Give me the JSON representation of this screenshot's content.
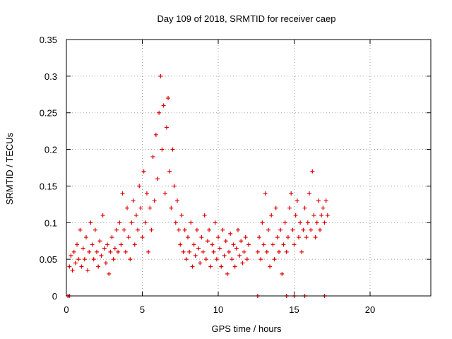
{
  "chart_data": {
    "type": "scatter",
    "title": "Day 109 of 2018, SRMTID for receiver caep",
    "xlabel": "GPS time / hours",
    "ylabel": "SRMTID / TECUs",
    "xlim": [
      0,
      24
    ],
    "ylim": [
      0,
      0.35
    ],
    "x_ticks": [
      0,
      5,
      10,
      15,
      20
    ],
    "x_tick_labels": [
      "0",
      "5",
      "10",
      "15",
      "20"
    ],
    "y_ticks": [
      0,
      0.05,
      0.1,
      0.15,
      0.2,
      0.25,
      0.3,
      0.35
    ],
    "y_tick_labels": [
      "0",
      "0.05",
      "0.1",
      "0.15",
      "0.2",
      "0.25",
      "0.3",
      "0.35"
    ],
    "grid": true,
    "marker": "+",
    "color": "#e00000",
    "series": [
      {
        "name": "SRMTID",
        "points": [
          [
            0.1,
            0.0
          ],
          [
            0.2,
            0.0
          ],
          [
            12.6,
            0.0
          ],
          [
            14.5,
            0.0
          ],
          [
            15.0,
            0.0
          ],
          [
            15.7,
            0.0
          ],
          [
            17.0,
            0.0
          ],
          [
            0.2,
            0.04
          ],
          [
            0.3,
            0.055
          ],
          [
            0.4,
            0.035
          ],
          [
            0.5,
            0.06
          ],
          [
            0.6,
            0.045
          ],
          [
            0.7,
            0.07
          ],
          [
            0.8,
            0.05
          ],
          [
            0.9,
            0.09
          ],
          [
            1.0,
            0.04
          ],
          [
            1.1,
            0.065
          ],
          [
            1.2,
            0.05
          ],
          [
            1.3,
            0.08
          ],
          [
            1.4,
            0.035
          ],
          [
            1.5,
            0.06
          ],
          [
            1.6,
            0.1
          ],
          [
            1.7,
            0.07
          ],
          [
            1.8,
            0.05
          ],
          [
            1.9,
            0.09
          ],
          [
            2.0,
            0.06
          ],
          [
            2.1,
            0.04
          ],
          [
            2.2,
            0.075
          ],
          [
            2.3,
            0.055
          ],
          [
            2.4,
            0.11
          ],
          [
            2.5,
            0.065
          ],
          [
            2.6,
            0.045
          ],
          [
            2.7,
            0.07
          ],
          [
            2.8,
            0.03
          ],
          [
            2.9,
            0.06
          ],
          [
            3.0,
            0.08
          ],
          [
            3.1,
            0.05
          ],
          [
            3.2,
            0.065
          ],
          [
            3.3,
            0.09
          ],
          [
            3.4,
            0.06
          ],
          [
            3.5,
            0.1
          ],
          [
            3.6,
            0.07
          ],
          [
            3.7,
            0.14
          ],
          [
            3.8,
            0.09
          ],
          [
            3.9,
            0.06
          ],
          [
            4.0,
            0.12
          ],
          [
            4.1,
            0.08
          ],
          [
            4.2,
            0.05
          ],
          [
            4.3,
            0.1
          ],
          [
            4.4,
            0.13
          ],
          [
            4.5,
            0.07
          ],
          [
            4.6,
            0.11
          ],
          [
            4.7,
            0.09
          ],
          [
            4.8,
            0.15
          ],
          [
            4.9,
            0.12
          ],
          [
            5.0,
            0.08
          ],
          [
            5.1,
            0.17
          ],
          [
            5.2,
            0.1
          ],
          [
            5.3,
            0.14
          ],
          [
            5.4,
            0.06
          ],
          [
            5.5,
            0.12
          ],
          [
            5.6,
            0.09
          ],
          [
            5.7,
            0.19
          ],
          [
            5.8,
            0.13
          ],
          [
            5.9,
            0.22
          ],
          [
            6.0,
            0.16
          ],
          [
            6.1,
            0.25
          ],
          [
            6.2,
            0.3
          ],
          [
            6.3,
            0.2
          ],
          [
            6.4,
            0.26
          ],
          [
            6.5,
            0.14
          ],
          [
            6.6,
            0.23
          ],
          [
            6.7,
            0.27
          ],
          [
            6.8,
            0.17
          ],
          [
            6.9,
            0.12
          ],
          [
            7.0,
            0.2
          ],
          [
            7.1,
            0.15
          ],
          [
            7.2,
            0.1
          ],
          [
            7.3,
            0.13
          ],
          [
            7.4,
            0.09
          ],
          [
            7.5,
            0.07
          ],
          [
            7.6,
            0.11
          ],
          [
            7.7,
            0.06
          ],
          [
            7.8,
            0.09
          ],
          [
            7.9,
            0.05
          ],
          [
            8.0,
            0.08
          ],
          [
            8.1,
            0.06
          ],
          [
            8.2,
            0.1
          ],
          [
            8.3,
            0.04
          ],
          [
            8.4,
            0.07
          ],
          [
            8.5,
            0.055
          ],
          [
            8.6,
            0.09
          ],
          [
            8.7,
            0.065
          ],
          [
            8.8,
            0.045
          ],
          [
            8.9,
            0.08
          ],
          [
            9.0,
            0.06
          ],
          [
            9.1,
            0.11
          ],
          [
            9.2,
            0.05
          ],
          [
            9.3,
            0.075
          ],
          [
            9.4,
            0.09
          ],
          [
            9.5,
            0.04
          ],
          [
            9.6,
            0.07
          ],
          [
            9.7,
            0.06
          ],
          [
            9.8,
            0.1
          ],
          [
            9.9,
            0.05
          ],
          [
            10.0,
            0.08
          ],
          [
            10.1,
            0.065
          ],
          [
            10.2,
            0.04
          ],
          [
            10.3,
            0.09
          ],
          [
            10.4,
            0.055
          ],
          [
            10.5,
            0.075
          ],
          [
            10.6,
            0.03
          ],
          [
            10.7,
            0.06
          ],
          [
            10.8,
            0.085
          ],
          [
            10.9,
            0.05
          ],
          [
            11.0,
            0.07
          ],
          [
            11.1,
            0.04
          ],
          [
            11.2,
            0.065
          ],
          [
            11.3,
            0.09
          ],
          [
            11.4,
            0.055
          ],
          [
            11.5,
            0.075
          ],
          [
            11.6,
            0.045
          ],
          [
            11.7,
            0.06
          ],
          [
            11.8,
            0.08
          ],
          [
            11.9,
            0.05
          ],
          [
            12.0,
            0.07
          ],
          [
            12.6,
            0.06
          ],
          [
            12.7,
            0.08
          ],
          [
            12.8,
            0.05
          ],
          [
            12.9,
            0.1
          ],
          [
            13.0,
            0.07
          ],
          [
            13.1,
            0.14
          ],
          [
            13.2,
            0.06
          ],
          [
            13.3,
            0.09
          ],
          [
            13.4,
            0.04
          ],
          [
            13.5,
            0.11
          ],
          [
            13.6,
            0.07
          ],
          [
            13.7,
            0.05
          ],
          [
            13.8,
            0.12
          ],
          [
            13.9,
            0.08
          ],
          [
            14.0,
            0.06
          ],
          [
            14.1,
            0.09
          ],
          [
            14.2,
            0.03
          ],
          [
            14.3,
            0.07
          ],
          [
            14.4,
            0.1
          ],
          [
            14.5,
            0.06
          ],
          [
            14.6,
            0.08
          ],
          [
            14.7,
            0.12
          ],
          [
            14.8,
            0.14
          ],
          [
            14.9,
            0.09
          ],
          [
            15.0,
            0.07
          ],
          [
            15.1,
            0.11
          ],
          [
            15.2,
            0.13
          ],
          [
            15.3,
            0.08
          ],
          [
            15.4,
            0.1
          ],
          [
            15.5,
            0.06
          ],
          [
            15.6,
            0.09
          ],
          [
            15.7,
            0.12
          ],
          [
            15.8,
            0.08
          ],
          [
            15.9,
            0.1
          ],
          [
            16.0,
            0.14
          ],
          [
            16.1,
            0.09
          ],
          [
            16.2,
            0.17
          ],
          [
            16.3,
            0.11
          ],
          [
            16.4,
            0.08
          ],
          [
            16.5,
            0.1
          ],
          [
            16.6,
            0.13
          ],
          [
            16.7,
            0.09
          ],
          [
            16.8,
            0.11
          ],
          [
            16.9,
            0.12
          ],
          [
            17.0,
            0.1
          ],
          [
            17.1,
            0.13
          ],
          [
            17.2,
            0.11
          ]
        ]
      }
    ]
  }
}
